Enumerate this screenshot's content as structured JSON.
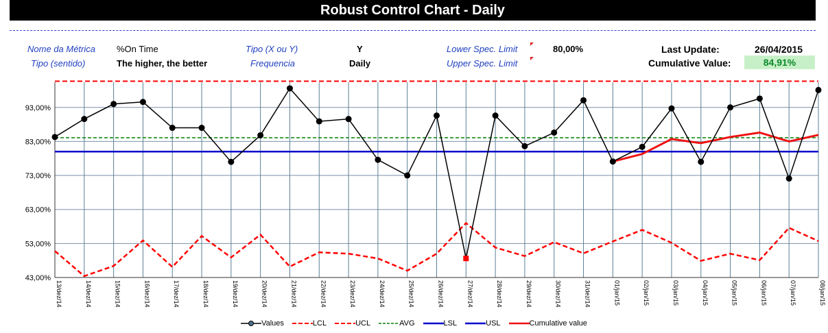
{
  "header": {
    "title": "Robust Control Chart - Daily",
    "metric_name_label": "Nome da Métrica",
    "metric_name": "%On Time",
    "direction_label": "Tipo (sentido)",
    "direction": "The higher, the better",
    "type_label": "Tipo (X ou Y)",
    "type": "Y",
    "frequency_label": "Frequencia",
    "frequency": "Daily",
    "lower_spec_label": "Lower Spec. Limit",
    "lower_spec": "80,00%",
    "upper_spec_label": "Upper Spec. Limit",
    "upper_spec": "",
    "last_update_label": "Last Update:",
    "last_update": "26/04/2015",
    "cumulative_label": "Cumulative Value:",
    "cumulative": "84,91%"
  },
  "colors": {
    "values": "#000000",
    "lcl": "#ff0000",
    "ucl": "#ff0000",
    "avg": "#008000",
    "lsl": "#0000cc",
    "usl": "#0000cc",
    "cumulative": "#ee1111",
    "grid_vertical": "#5b7f96",
    "grid_horizontal": "#7a8fa8"
  },
  "chart_data": {
    "type": "line",
    "x": [
      "13/dez/14",
      "14/dez/14",
      "15/dez/14",
      "16/dez/14",
      "17/dez/14",
      "18/dez/14",
      "19/dez/14",
      "20/dez/14",
      "21/dez/14",
      "22/dez/14",
      "23/dez/14",
      "24/dez/14",
      "25/dez/14",
      "26/dez/14",
      "27/dez/14",
      "28/dez/14",
      "29/dez/14",
      "30/dez/14",
      "31/dez/14",
      "01/jan/15",
      "02/jan/15",
      "03/jan/15",
      "04/jan/15",
      "05/jan/15",
      "06/jan/15",
      "07/jan/15",
      "08/jan/15"
    ],
    "ylim": [
      43,
      100
    ],
    "y_ticks": [
      "43,00%",
      "53,00%",
      "63,00%",
      "73,00%",
      "83,00%",
      "93,00%"
    ],
    "y_tick_values": [
      43,
      53,
      63,
      73,
      83,
      93
    ],
    "grid": true,
    "legend_position": "bottom",
    "series": [
      {
        "name": "Values",
        "values": [
          84.3,
          89.6,
          94.0,
          94.6,
          87.0,
          87.0,
          77.0,
          84.8,
          98.6,
          88.9,
          89.6,
          77.6,
          73.0,
          90.6,
          48.6,
          90.6,
          81.6,
          85.6,
          95.1,
          77.1,
          81.4,
          92.7,
          77.0,
          93.0,
          95.6,
          72.1,
          98.1
        ]
      },
      {
        "name": "LCL",
        "values": [
          50.8,
          43.4,
          46.4,
          53.9,
          46.1,
          55.2,
          48.9,
          55.6,
          46.2,
          50.4,
          50.0,
          48.6,
          45.0,
          50.0,
          59.0,
          51.8,
          49.3,
          53.4,
          50.1,
          53.6,
          57.0,
          53.2,
          47.9,
          50.0,
          48.1,
          57.6,
          53.7
        ]
      },
      {
        "name": "UCL",
        "values": [
          100.7,
          100.7,
          100.7,
          100.7,
          100.7,
          100.7,
          100.7,
          100.7,
          100.7,
          100.7,
          100.7,
          100.7,
          100.7,
          100.7,
          100.7,
          100.7,
          100.7,
          100.7,
          100.7,
          100.7,
          100.7,
          100.7,
          100.7,
          100.7,
          100.7,
          100.7,
          100.7
        ]
      },
      {
        "name": "AVG",
        "values": [
          84.1,
          84.1,
          84.1,
          84.1,
          84.1,
          84.1,
          84.1,
          84.1,
          84.1,
          84.1,
          84.1,
          84.1,
          84.1,
          84.1,
          84.1,
          84.1,
          84.1,
          84.1,
          84.1,
          84.1,
          84.1,
          84.1,
          84.1,
          84.1,
          84.1,
          84.1,
          84.1
        ]
      },
      {
        "name": "LSL",
        "values": [
          80.0,
          80.0,
          80.0,
          80.0,
          80.0,
          80.0,
          80.0,
          80.0,
          80.0,
          80.0,
          80.0,
          80.0,
          80.0,
          80.0,
          80.0,
          80.0,
          80.0,
          80.0,
          80.0,
          80.0,
          80.0,
          80.0,
          80.0,
          80.0,
          80.0,
          80.0,
          80.0
        ]
      },
      {
        "name": "USL",
        "values": [
          80.0,
          80.0,
          80.0,
          80.0,
          80.0,
          80.0,
          80.0,
          80.0,
          80.0,
          80.0,
          80.0,
          80.0,
          80.0,
          80.0,
          80.0,
          80.0,
          80.0,
          80.0,
          80.0,
          80.0,
          80.0,
          80.0,
          80.0,
          80.0,
          80.0,
          80.0,
          80.0
        ]
      },
      {
        "name": "Cumulative value",
        "values": [
          null,
          null,
          null,
          null,
          null,
          null,
          null,
          null,
          null,
          null,
          null,
          null,
          null,
          null,
          null,
          null,
          null,
          null,
          null,
          77.1,
          79.3,
          83.7,
          82.5,
          84.3,
          85.6,
          83.0,
          84.9
        ]
      }
    ]
  }
}
